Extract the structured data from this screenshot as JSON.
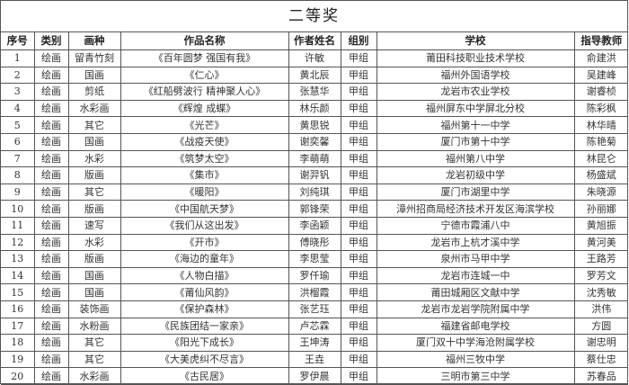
{
  "title": "二等奖",
  "columns": [
    "序号",
    "类别",
    "画种",
    "作品名称",
    "作者姓名",
    "组别",
    "学校",
    "指导教师"
  ],
  "rows": [
    [
      "1",
      "绘画",
      "留青竹刻",
      "《百年圆梦 强国有我》",
      "许敏",
      "甲组",
      "莆田科技职业技术学校",
      "俞建洪"
    ],
    [
      "2",
      "绘画",
      "国画",
      "《仁心》",
      "黄北辰",
      "甲组",
      "福州外国语学校",
      "吴建峰"
    ],
    [
      "3",
      "绘画",
      "剪纸",
      "《红船劈波行 精神聚人心》",
      "张慧华",
      "甲组",
      "龙岩市农业学校",
      "谢睿桢"
    ],
    [
      "4",
      "绘画",
      "水彩画",
      "《辉煌 成蝶》",
      "林乐颜",
      "甲组",
      "福州屏东中学屏北分校",
      "陈彩枫"
    ],
    [
      "5",
      "绘画",
      "其它",
      "《光芒》",
      "黄思锐",
      "甲组",
      "福州第十一中学",
      "林华晴"
    ],
    [
      "6",
      "绘画",
      "国画",
      "《战疫天使》",
      "谢奕馨",
      "甲组",
      "厦门市第十中学",
      "陈艳菊"
    ],
    [
      "7",
      "绘画",
      "水彩",
      "《筑梦太空》",
      "李萌萌",
      "甲组",
      "福州第八中学",
      "林昆仑"
    ],
    [
      "8",
      "绘画",
      "版画",
      "《集市》",
      "谢羿钒",
      "甲组",
      "龙岩初级中学",
      "杨盛斌"
    ],
    [
      "9",
      "绘画",
      "其它",
      "《暖阳》",
      "刘纯琪",
      "甲组",
      "厦门市湖里中学",
      "朱晓源"
    ],
    [
      "10",
      "绘画",
      "版画",
      "《中国航天梦》",
      "郭锋荣",
      "甲组",
      "漳州招商局经济技术开发区海滨学校",
      "孙丽娜"
    ],
    [
      "11",
      "绘画",
      "速写",
      "《我们从这出发》",
      "李函颖",
      "甲组",
      "宁德市霞浦八中",
      "黄旭振"
    ],
    [
      "12",
      "绘画",
      "水彩",
      "《开市》",
      "傅晓彤",
      "甲组",
      "龙岩市上杭才溪中学",
      "黄河美"
    ],
    [
      "13",
      "绘画",
      "版画",
      "《海边的童年》",
      "李思莹",
      "甲组",
      "泉州市马甲中学",
      "王路芳"
    ],
    [
      "14",
      "绘画",
      "国画",
      "《人物白描》",
      "罗仟瑜",
      "甲组",
      "龙岩市连城一中",
      "罗芳文"
    ],
    [
      "15",
      "绘画",
      "国画",
      "《莆仙风韵》",
      "洪榴霞",
      "甲组",
      "莆田城厢区文献中学",
      "沈秀敏"
    ],
    [
      "16",
      "绘画",
      "装饰画",
      "《保护森林》",
      "张艺珏",
      "甲组",
      "龙岩市龙岩学院附属中学",
      "洪伟"
    ],
    [
      "17",
      "绘画",
      "水粉画",
      "《民族团结一家亲》",
      "卢芯霖",
      "甲组",
      "福建省邮电学校",
      "方圆"
    ],
    [
      "18",
      "绘画",
      "其它",
      "《阳光下成长》",
      "王坤涛",
      "甲组",
      "厦门双十中学海沧附属学校",
      "谢忠明"
    ],
    [
      "19",
      "绘画",
      "其它",
      "《大美虎纠不尽言》",
      "王垚",
      "甲组",
      "福州三牧中学",
      "蔡仕忠"
    ],
    [
      "20",
      "绘画",
      "水彩画",
      "《古民居》",
      "罗伊晨",
      "甲组",
      "三明市第三中学",
      "苏春品"
    ]
  ]
}
